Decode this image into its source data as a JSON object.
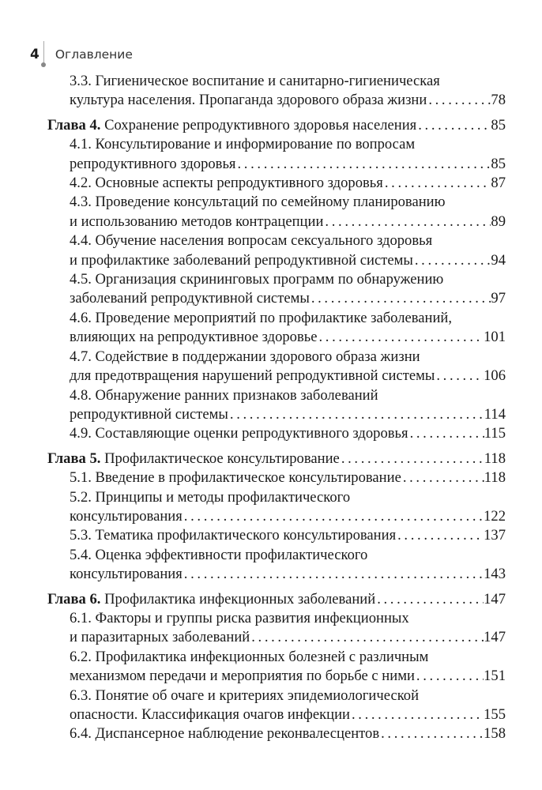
{
  "header": {
    "page_number": "4",
    "title": "Оглавление"
  },
  "entries": [
    {
      "type": "sec",
      "lines": [
        "3.3. Гигиеническое воспитание и санитарно-гигиеническая",
        "культура населения. Пропаганда здорового образа жизни"
      ],
      "page": "78"
    },
    {
      "type": "ch",
      "label": "Глава 4.",
      "lines": [
        "Сохранение репродуктивного здоровья населения"
      ],
      "page": "85"
    },
    {
      "type": "sec",
      "lines": [
        "4.1. Консультирование и информирование по вопросам",
        "репродуктивного здоровья"
      ],
      "page": "85"
    },
    {
      "type": "sec",
      "lines": [
        "4.2. Основные аспекты репродуктивного здоровья"
      ],
      "page": "87"
    },
    {
      "type": "sec",
      "lines": [
        "4.3. Проведение консультаций по семейному планированию",
        "и использованию методов контрацепции"
      ],
      "page": "89"
    },
    {
      "type": "sec",
      "lines": [
        "4.4. Обучение населения вопросам сексуального здоровья",
        "и профилактике заболеваний репродуктивной системы"
      ],
      "page": "94"
    },
    {
      "type": "sec",
      "lines": [
        "4.5. Организация скрининговых программ по обнаружению",
        "заболеваний репродуктивной системы"
      ],
      "page": "97"
    },
    {
      "type": "sec",
      "lines": [
        "4.6. Проведение мероприятий по профилактике заболеваний,",
        "влияющих на репродуктивное здоровье"
      ],
      "page": "101"
    },
    {
      "type": "sec",
      "lines": [
        "4.7. Содействие в поддержании здорового образа жизни",
        "для предотвращения нарушений репродуктивной системы"
      ],
      "page": "106"
    },
    {
      "type": "sec",
      "lines": [
        "4.8. Обнаружение ранних признаков заболеваний",
        "репродуктивной системы"
      ],
      "page": "114"
    },
    {
      "type": "sec",
      "lines": [
        "4.9. Составляющие оценки репродуктивного здоровья"
      ],
      "page": "115"
    },
    {
      "type": "ch",
      "label": "Глава 5.",
      "lines": [
        "Профилактическое консультирование"
      ],
      "page": "118"
    },
    {
      "type": "sec",
      "lines": [
        "5.1. Введение в профилактическое консультирование"
      ],
      "page": "118"
    },
    {
      "type": "sec",
      "lines": [
        "5.2. Принципы и методы профилактического",
        "консультирования"
      ],
      "page": "122"
    },
    {
      "type": "sec",
      "lines": [
        "5.3. Тематика профилактического консультирования"
      ],
      "page": "137"
    },
    {
      "type": "sec",
      "lines": [
        "5.4. Оценка эффективности профилактического",
        "консультирования"
      ],
      "page": "143"
    },
    {
      "type": "ch",
      "label": "Глава 6.",
      "lines": [
        "Профилактика инфекционных заболеваний"
      ],
      "page": "147"
    },
    {
      "type": "sec",
      "lines": [
        "6.1. Факторы и группы риска развития инфекционных",
        "и паразитарных заболеваний"
      ],
      "page": "147"
    },
    {
      "type": "sec",
      "lines": [
        "6.2. Профилактика инфекционных болезней с различным",
        "механизмом передачи и мероприятия по борьбе с ними"
      ],
      "page": "151"
    },
    {
      "type": "sec",
      "lines": [
        "6.3. Понятие об очаге и критериях эпидемиологической",
        "опасности. Классификация очагов инфекции"
      ],
      "page": "155"
    },
    {
      "type": "sec",
      "lines": [
        "6.4. Диспансерное наблюдение реконвалесцентов"
      ],
      "page": "158"
    }
  ]
}
